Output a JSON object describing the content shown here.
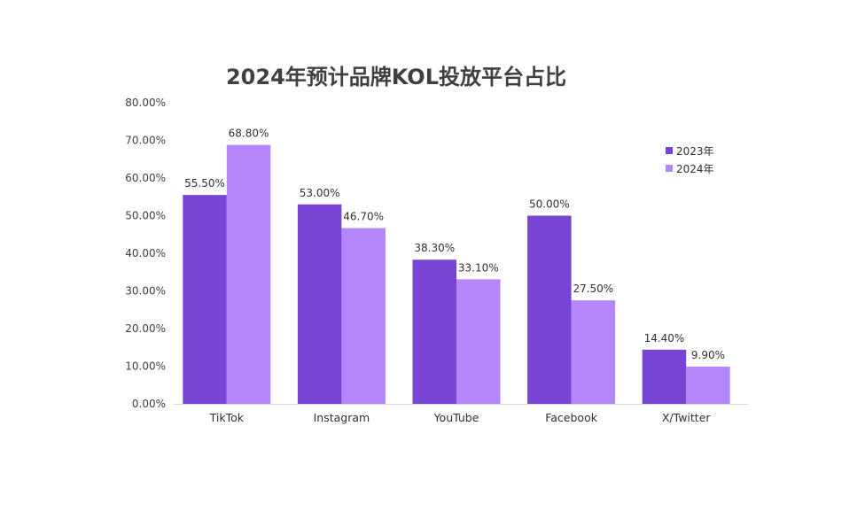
{
  "chart_data": {
    "type": "bar",
    "title": "2024年预计品牌KOL投放平台占比",
    "xlabel": "",
    "ylabel": "",
    "categories": [
      "TikTok",
      "Instagram",
      "YouTube",
      "Facebook",
      "X/Twitter"
    ],
    "series": [
      {
        "name": "2023年",
        "values": [
          55.5,
          53.0,
          38.3,
          50.0,
          14.4
        ],
        "color": "#7744D4"
      },
      {
        "name": "2024年",
        "values": [
          68.8,
          46.7,
          33.1,
          27.5,
          9.9
        ],
        "color": "#B387FA"
      }
    ],
    "data_labels": [
      [
        "55.50%",
        "53.00%",
        "38.30%",
        "50.00%",
        "14.40%"
      ],
      [
        "68.80%",
        "46.70%",
        "33.10%",
        "27.50%",
        "9.90%"
      ]
    ],
    "yticks": [
      0,
      10,
      20,
      30,
      40,
      50,
      60,
      70,
      80
    ],
    "ytick_labels": [
      "0.00%",
      "10.00%",
      "20.00%",
      "30.00%",
      "40.00%",
      "50.00%",
      "60.00%",
      "70.00%",
      "80.00%"
    ],
    "ylim": [
      0,
      80
    ],
    "grid": false,
    "legend_position": "top-right"
  }
}
